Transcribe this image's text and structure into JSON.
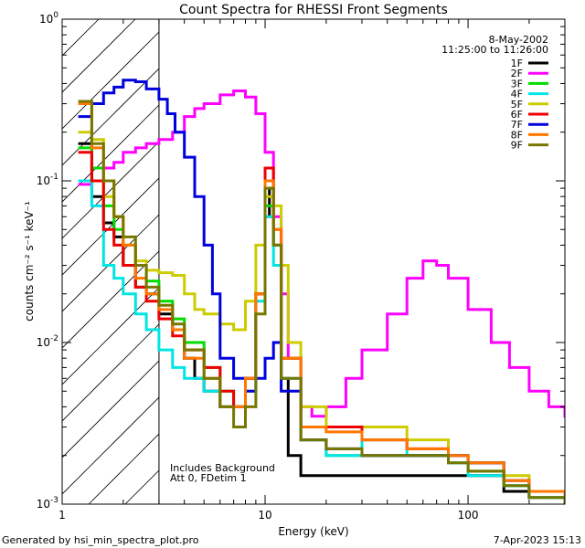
{
  "chart_data": {
    "type": "line",
    "title": "Count Spectra for RHESSI Front Segments",
    "xlabel": "Energy (keV)",
    "ylabel": "counts cm⁻² s⁻¹ keV⁻¹",
    "xscale": "log",
    "yscale": "log",
    "xlim": [
      1,
      300
    ],
    "ylim": [
      0.001,
      1
    ],
    "x_ticks": [
      "1",
      "10",
      "100"
    ],
    "y_ticks": [
      {
        "value": 1,
        "base": "10",
        "exp": "0"
      },
      {
        "value": 0.1,
        "base": "10",
        "exp": "-1"
      },
      {
        "value": 0.01,
        "base": "10",
        "exp": "-2"
      },
      {
        "value": 0.001,
        "base": "10",
        "exp": "-3"
      }
    ],
    "date": "8-May-2002",
    "time_range": "11:25:00 to 11:26:00",
    "annotation_lines": [
      "Includes Background",
      "Att 0, FDetim 1"
    ],
    "attenuator_cutoff_kev": 3,
    "legend_position": "top-right",
    "series": [
      {
        "name": "1F",
        "color": "#000000",
        "x": [
          1.2,
          1.4,
          1.6,
          1.8,
          2.0,
          2.3,
          2.6,
          3.0,
          3.5,
          4,
          4.5,
          5,
          6,
          7,
          8,
          9,
          10,
          10.5,
          11,
          12,
          13,
          15,
          20,
          30,
          50,
          80,
          100,
          150,
          200,
          300
        ],
        "y": [
          0.17,
          0.08,
          0.055,
          0.045,
          0.03,
          0.022,
          0.02,
          0.015,
          0.012,
          0.008,
          0.006,
          0.005,
          0.004,
          0.004,
          0.006,
          0.02,
          0.06,
          0.09,
          0.04,
          0.006,
          0.002,
          0.0015,
          0.0015,
          0.0015,
          0.0015,
          0.0015,
          0.0015,
          0.0012,
          0.0011,
          0.001
        ]
      },
      {
        "name": "2F",
        "color": "#ff00ff",
        "x": [
          1.2,
          1.4,
          1.6,
          1.8,
          2.0,
          2.3,
          2.6,
          3.0,
          3.5,
          4,
          4.5,
          5,
          6,
          7,
          8,
          9,
          10,
          11,
          12,
          13,
          15,
          17,
          20,
          25,
          30,
          40,
          50,
          60,
          70,
          80,
          100,
          130,
          160,
          200,
          250,
          300
        ],
        "y": [
          0.095,
          0.1,
          0.12,
          0.13,
          0.15,
          0.16,
          0.17,
          0.18,
          0.2,
          0.25,
          0.28,
          0.3,
          0.34,
          0.36,
          0.33,
          0.26,
          0.15,
          0.06,
          0.02,
          0.008,
          0.004,
          0.0035,
          0.004,
          0.006,
          0.009,
          0.015,
          0.025,
          0.032,
          0.03,
          0.025,
          0.016,
          0.01,
          0.007,
          0.005,
          0.004,
          0.0035
        ]
      },
      {
        "name": "3F",
        "color": "#00dd00",
        "x": [
          1.2,
          1.4,
          1.6,
          1.8,
          2.0,
          2.3,
          2.6,
          3.0,
          3.5,
          4,
          5,
          6,
          7,
          8,
          9,
          10,
          11,
          12,
          15,
          20,
          30,
          50,
          80,
          100,
          150,
          200,
          300
        ],
        "y": [
          0.16,
          0.12,
          0.07,
          0.05,
          0.04,
          0.03,
          0.024,
          0.018,
          0.014,
          0.01,
          0.007,
          0.005,
          0.004,
          0.006,
          0.02,
          0.07,
          0.04,
          0.008,
          0.0025,
          0.002,
          0.002,
          0.002,
          0.0018,
          0.0016,
          0.0013,
          0.0011,
          0.001
        ]
      },
      {
        "name": "4F",
        "color": "#00e5e5",
        "x": [
          1.2,
          1.4,
          1.6,
          1.8,
          2.0,
          2.3,
          2.6,
          3.0,
          3.5,
          4,
          5,
          6,
          7,
          8,
          9,
          10,
          11,
          12,
          15,
          20,
          30,
          50,
          80,
          100,
          150,
          200,
          300
        ],
        "y": [
          0.1,
          0.07,
          0.03,
          0.025,
          0.02,
          0.015,
          0.012,
          0.009,
          0.007,
          0.006,
          0.005,
          0.004,
          0.004,
          0.005,
          0.018,
          0.06,
          0.03,
          0.006,
          0.0025,
          0.002,
          0.0025,
          0.002,
          0.0018,
          0.0015,
          0.0013,
          0.0011,
          0.001
        ]
      },
      {
        "name": "5F",
        "color": "#cccc00",
        "x": [
          1.2,
          1.4,
          1.6,
          1.8,
          2.0,
          2.3,
          2.6,
          3.0,
          3.5,
          4,
          4.5,
          5,
          6,
          7,
          8,
          9,
          10,
          11,
          12,
          13,
          15,
          20,
          30,
          50,
          80,
          100,
          150,
          200,
          300
        ],
        "y": [
          0.2,
          0.18,
          0.08,
          0.06,
          0.04,
          0.032,
          0.028,
          0.027,
          0.026,
          0.02,
          0.016,
          0.015,
          0.013,
          0.012,
          0.018,
          0.04,
          0.08,
          0.07,
          0.03,
          0.01,
          0.004,
          0.003,
          0.003,
          0.0025,
          0.002,
          0.0018,
          0.0015,
          0.0012,
          0.001
        ]
      },
      {
        "name": "6F",
        "color": "#ee0000",
        "x": [
          1.2,
          1.4,
          1.6,
          1.8,
          2.0,
          2.3,
          2.6,
          3.0,
          3.5,
          4,
          5,
          6,
          7,
          8,
          9,
          10,
          11,
          12,
          15,
          20,
          30,
          50,
          80,
          100,
          150,
          200,
          300
        ],
        "y": [
          0.15,
          0.1,
          0.05,
          0.04,
          0.03,
          0.022,
          0.018,
          0.014,
          0.011,
          0.009,
          0.007,
          0.005,
          0.004,
          0.006,
          0.02,
          0.12,
          0.05,
          0.008,
          0.003,
          0.003,
          0.0025,
          0.0022,
          0.002,
          0.0018,
          0.0014,
          0.0012,
          0.001
        ]
      },
      {
        "name": "7F",
        "color": "#0000dd",
        "x": [
          1.2,
          1.4,
          1.6,
          1.8,
          2.0,
          2.3,
          2.6,
          3.0,
          3.3,
          3.6,
          4,
          4.5,
          5,
          5.5,
          6,
          7,
          8,
          9,
          10,
          11,
          12,
          15,
          20,
          30,
          50,
          80,
          100,
          150,
          200,
          300
        ],
        "y": [
          0.25,
          0.3,
          0.35,
          0.38,
          0.42,
          0.41,
          0.37,
          0.32,
          0.26,
          0.2,
          0.14,
          0.08,
          0.04,
          0.02,
          0.008,
          0.006,
          0.005,
          0.006,
          0.008,
          0.01,
          0.005,
          0.0025,
          0.0022,
          0.002,
          0.002,
          0.002,
          0.0018,
          0.0014,
          0.0012,
          0.001
        ]
      },
      {
        "name": "8F",
        "color": "#ff7700",
        "x": [
          1.2,
          1.4,
          1.6,
          1.8,
          2.0,
          2.3,
          2.6,
          3.0,
          3.5,
          4,
          5,
          6,
          7,
          8,
          9,
          10,
          11,
          12,
          15,
          20,
          30,
          50,
          80,
          100,
          150,
          200,
          300
        ],
        "y": [
          0.3,
          0.16,
          0.1,
          0.06,
          0.04,
          0.025,
          0.02,
          0.016,
          0.012,
          0.008,
          0.006,
          0.004,
          0.004,
          0.006,
          0.02,
          0.1,
          0.05,
          0.008,
          0.003,
          0.0028,
          0.0025,
          0.0022,
          0.002,
          0.0018,
          0.0014,
          0.0012,
          0.001
        ]
      },
      {
        "name": "9F",
        "color": "#777700",
        "x": [
          1.2,
          1.4,
          1.6,
          1.8,
          2.0,
          2.3,
          2.6,
          3.0,
          3.5,
          4,
          5,
          6,
          7,
          8,
          9,
          10,
          11,
          12,
          15,
          20,
          30,
          50,
          80,
          100,
          150,
          200,
          300
        ],
        "y": [
          0.31,
          0.17,
          0.1,
          0.06,
          0.045,
          0.03,
          0.022,
          0.017,
          0.013,
          0.009,
          0.006,
          0.004,
          0.003,
          0.004,
          0.015,
          0.09,
          0.04,
          0.006,
          0.0025,
          0.0022,
          0.002,
          0.002,
          0.0018,
          0.0016,
          0.0013,
          0.0011,
          0.001
        ]
      }
    ]
  },
  "footer": {
    "generated_by": "Generated by hsi_min_spectra_plot.pro",
    "timestamp": "7-Apr-2023 15:13"
  }
}
